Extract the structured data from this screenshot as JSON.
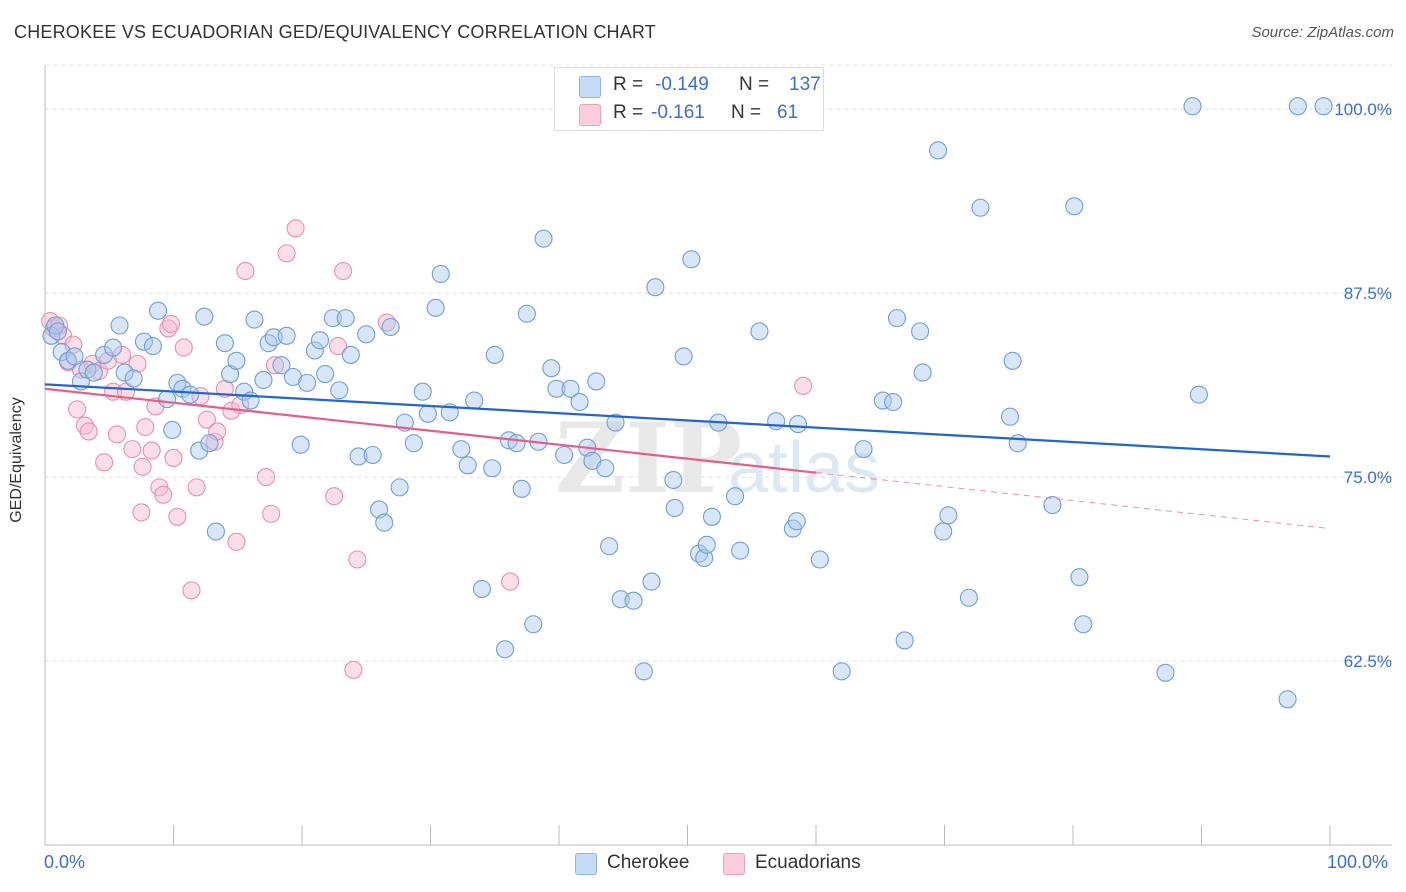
{
  "header": {
    "title": "CHEROKEE VS ECUADORIAN GED/EQUIVALENCY CORRELATION CHART",
    "source": "Source: ZipAtlas.com"
  },
  "legend": {
    "r_label": "R =",
    "n_label": "N =",
    "rows": [
      {
        "name": "Cherokee",
        "r": "-0.149",
        "n": "137",
        "color": "#a8c8f0"
      },
      {
        "name": "Ecuadorians",
        "r": "-0.161",
        "n": "61",
        "color": "#f7b8cc"
      }
    ]
  },
  "colors": {
    "blue_fill": "#a8c8f0",
    "blue_stroke": "#6f9fd8",
    "blue_line": "#2266cc",
    "pink_fill": "#f7b8cc",
    "pink_stroke": "#e890aa",
    "pink_line": "#e0608a",
    "axis_label": "#3a6fce"
  },
  "chart_data": {
    "type": "scatter",
    "title": "CHEROKEE VS ECUADORIAN GED/EQUIVALENCY CORRELATION CHART",
    "xlabel": "",
    "ylabel": "GED/Equivalency",
    "xlim": [
      0,
      100
    ],
    "ylim": [
      50,
      103
    ],
    "x_tick_labels": [
      "0.0%",
      "100.0%"
    ],
    "y_ticks": [
      62.5,
      75.0,
      87.5,
      100.0
    ],
    "y_tick_labels": [
      "62.5%",
      "75.0%",
      "87.5%",
      "100.0%"
    ],
    "grid": true,
    "legend_position": "top-center",
    "watermark": "ZIPatlas",
    "series": [
      {
        "name": "Cherokee",
        "r": -0.149,
        "n": 137,
        "trend": {
          "x": [
            0,
            100
          ],
          "y": [
            81.3,
            76.4
          ]
        },
        "points": [
          [
            0.5,
            84.6
          ],
          [
            0.8,
            85.3
          ],
          [
            1.0,
            84.9
          ],
          [
            1.3,
            83.5
          ],
          [
            1.8,
            82.9
          ],
          [
            2.3,
            83.2
          ],
          [
            2.8,
            81.5
          ],
          [
            3.3,
            82.3
          ],
          [
            3.8,
            82.1
          ],
          [
            4.6,
            83.3
          ],
          [
            5.3,
            83.8
          ],
          [
            5.8,
            85.3
          ],
          [
            6.2,
            82.1
          ],
          [
            6.9,
            81.7
          ],
          [
            7.7,
            84.2
          ],
          [
            8.4,
            83.9
          ],
          [
            8.8,
            86.3
          ],
          [
            9.5,
            80.3
          ],
          [
            9.9,
            78.2
          ],
          [
            10.3,
            81.4
          ],
          [
            10.7,
            81.0
          ],
          [
            11.3,
            80.6
          ],
          [
            12.0,
            76.8
          ],
          [
            12.4,
            85.9
          ],
          [
            12.8,
            77.3
          ],
          [
            13.3,
            71.3
          ],
          [
            14.0,
            84.1
          ],
          [
            14.4,
            82.0
          ],
          [
            14.9,
            82.9
          ],
          [
            15.5,
            80.8
          ],
          [
            16.0,
            80.2
          ],
          [
            16.3,
            85.7
          ],
          [
            17.0,
            81.6
          ],
          [
            17.4,
            84.1
          ],
          [
            17.8,
            84.5
          ],
          [
            18.4,
            82.6
          ],
          [
            18.8,
            84.6
          ],
          [
            19.3,
            81.8
          ],
          [
            19.9,
            77.2
          ],
          [
            20.4,
            81.4
          ],
          [
            21.0,
            83.6
          ],
          [
            21.4,
            84.3
          ],
          [
            21.8,
            82.0
          ],
          [
            22.4,
            85.8
          ],
          [
            22.9,
            80.9
          ],
          [
            23.4,
            85.8
          ],
          [
            23.8,
            83.3
          ],
          [
            24.4,
            76.4
          ],
          [
            25.0,
            84.7
          ],
          [
            25.5,
            76.5
          ],
          [
            26.0,
            72.8
          ],
          [
            26.4,
            71.9
          ],
          [
            26.9,
            85.2
          ],
          [
            27.6,
            74.3
          ],
          [
            28.0,
            78.7
          ],
          [
            28.7,
            77.3
          ],
          [
            29.4,
            80.8
          ],
          [
            29.8,
            79.3
          ],
          [
            30.4,
            86.5
          ],
          [
            30.8,
            88.8
          ],
          [
            31.5,
            79.4
          ],
          [
            32.4,
            76.9
          ],
          [
            32.9,
            75.8
          ],
          [
            33.4,
            80.2
          ],
          [
            34.0,
            67.4
          ],
          [
            34.8,
            75.6
          ],
          [
            35.0,
            83.3
          ],
          [
            35.8,
            63.3
          ],
          [
            36.1,
            77.5
          ],
          [
            36.7,
            77.3
          ],
          [
            37.1,
            74.2
          ],
          [
            37.5,
            86.1
          ],
          [
            38.0,
            65.0
          ],
          [
            38.4,
            77.4
          ],
          [
            38.8,
            91.2
          ],
          [
            39.4,
            82.4
          ],
          [
            39.8,
            81.0
          ],
          [
            40.4,
            76.5
          ],
          [
            40.9,
            81.0
          ],
          [
            41.6,
            80.1
          ],
          [
            42.2,
            77.0
          ],
          [
            42.6,
            76.1
          ],
          [
            42.9,
            81.5
          ],
          [
            43.6,
            75.6
          ],
          [
            43.9,
            70.3
          ],
          [
            44.4,
            78.7
          ],
          [
            44.8,
            66.7
          ],
          [
            45.8,
            66.6
          ],
          [
            46.6,
            61.8
          ],
          [
            47.2,
            67.9
          ],
          [
            47.5,
            87.9
          ],
          [
            48.9,
            74.8
          ],
          [
            49.0,
            72.9
          ],
          [
            49.7,
            83.2
          ],
          [
            50.3,
            89.8
          ],
          [
            50.9,
            69.8
          ],
          [
            51.3,
            69.5
          ],
          [
            51.5,
            70.4
          ],
          [
            51.9,
            72.3
          ],
          [
            52.4,
            78.7
          ],
          [
            53.1,
            100.2
          ],
          [
            53.7,
            73.7
          ],
          [
            54.1,
            70.0
          ],
          [
            55.6,
            84.9
          ],
          [
            56.9,
            78.8
          ],
          [
            58.2,
            71.5
          ],
          [
            58.5,
            72.0
          ],
          [
            58.6,
            78.6
          ],
          [
            60.3,
            69.4
          ],
          [
            62.0,
            61.8
          ],
          [
            63.7,
            76.9
          ],
          [
            65.2,
            80.2
          ],
          [
            66.0,
            80.1
          ],
          [
            66.3,
            85.8
          ],
          [
            66.9,
            63.9
          ],
          [
            68.1,
            84.9
          ],
          [
            68.3,
            82.1
          ],
          [
            69.5,
            97.2
          ],
          [
            69.9,
            71.3
          ],
          [
            70.3,
            72.4
          ],
          [
            71.9,
            66.8
          ],
          [
            72.8,
            93.3
          ],
          [
            75.1,
            79.1
          ],
          [
            75.3,
            82.9
          ],
          [
            75.7,
            77.3
          ],
          [
            78.4,
            73.1
          ],
          [
            80.1,
            93.4
          ],
          [
            80.5,
            68.2
          ],
          [
            80.8,
            65.0
          ],
          [
            87.2,
            61.7
          ],
          [
            89.3,
            100.2
          ],
          [
            89.8,
            80.6
          ],
          [
            96.7,
            59.9
          ],
          [
            97.5,
            100.2
          ],
          [
            99.5,
            100.2
          ]
        ]
      },
      {
        "name": "Ecuadorians",
        "r": -0.161,
        "n": 61,
        "trend": {
          "x": [
            0,
            60
          ],
          "y": [
            81.0,
            75.3
          ]
        },
        "trend_extension": {
          "x": [
            60,
            100
          ],
          "y": [
            75.3,
            71.5
          ]
        },
        "points": [
          [
            0.4,
            85.6
          ],
          [
            0.7,
            85.1
          ],
          [
            1.1,
            85.3
          ],
          [
            1.4,
            84.6
          ],
          [
            1.8,
            82.8
          ],
          [
            2.2,
            84.0
          ],
          [
            2.5,
            79.6
          ],
          [
            2.8,
            82.3
          ],
          [
            3.1,
            78.5
          ],
          [
            3.4,
            78.1
          ],
          [
            3.7,
            82.7
          ],
          [
            4.2,
            82.2
          ],
          [
            4.6,
            76.0
          ],
          [
            4.9,
            82.9
          ],
          [
            5.3,
            80.8
          ],
          [
            5.6,
            77.9
          ],
          [
            6.0,
            83.3
          ],
          [
            6.3,
            80.8
          ],
          [
            6.8,
            76.9
          ],
          [
            7.2,
            82.7
          ],
          [
            7.5,
            72.6
          ],
          [
            7.6,
            75.7
          ],
          [
            7.8,
            78.4
          ],
          [
            8.3,
            76.8
          ],
          [
            8.6,
            79.8
          ],
          [
            8.9,
            74.3
          ],
          [
            9.2,
            73.8
          ],
          [
            9.6,
            85.1
          ],
          [
            9.8,
            85.4
          ],
          [
            10.0,
            76.3
          ],
          [
            10.3,
            72.3
          ],
          [
            10.8,
            83.8
          ],
          [
            11.4,
            67.3
          ],
          [
            11.8,
            74.3
          ],
          [
            12.1,
            80.5
          ],
          [
            12.6,
            78.9
          ],
          [
            13.2,
            77.4
          ],
          [
            13.4,
            78.1
          ],
          [
            14.0,
            81.0
          ],
          [
            14.5,
            79.5
          ],
          [
            14.9,
            70.6
          ],
          [
            15.2,
            79.9
          ],
          [
            15.6,
            89.0
          ],
          [
            17.2,
            75.0
          ],
          [
            17.6,
            72.5
          ],
          [
            17.9,
            82.6
          ],
          [
            18.8,
            90.2
          ],
          [
            19.5,
            91.9
          ],
          [
            22.5,
            73.7
          ],
          [
            22.8,
            83.9
          ],
          [
            23.2,
            89.0
          ],
          [
            24.3,
            69.4
          ],
          [
            24.0,
            61.9
          ],
          [
            26.6,
            85.5
          ],
          [
            36.2,
            67.9
          ],
          [
            59.0,
            81.2
          ]
        ]
      }
    ]
  }
}
